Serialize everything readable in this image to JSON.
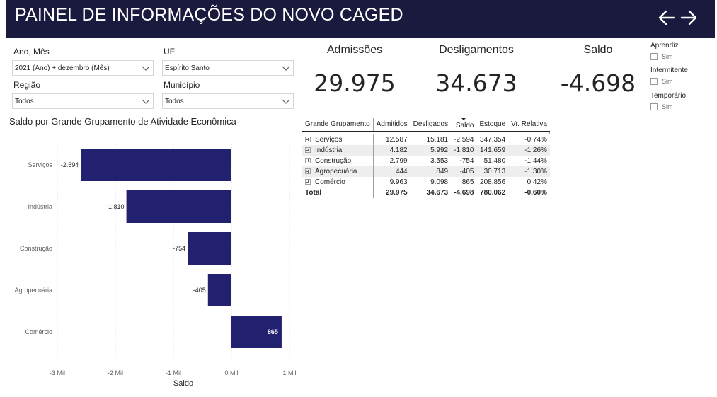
{
  "header": {
    "title": "PAINEL DE INFORMAÇÕES DO NOVO CAGED"
  },
  "filters": {
    "ano_mes": {
      "label": "Ano, Mês",
      "value": "2021 (Ano) + dezembro (Mês)"
    },
    "uf": {
      "label": "UF",
      "value": "Espírito Santo"
    },
    "regiao": {
      "label": "Região",
      "value": "Todos"
    },
    "municipio": {
      "label": "Município",
      "value": "Todos"
    }
  },
  "kpis": {
    "admissoes": {
      "label": "Admissões",
      "value": "29.975"
    },
    "desligamentos": {
      "label": "Desligamentos",
      "value": "34.673"
    },
    "saldo": {
      "label": "Saldo",
      "value": "-4.698"
    }
  },
  "checkboxes": {
    "aprendiz": {
      "title": "Aprendiz",
      "option": "Sim"
    },
    "intermitente": {
      "title": "Intermitente",
      "option": "Sim"
    },
    "temporario": {
      "title": "Temporário",
      "option": "Sim"
    }
  },
  "chart_data": {
    "type": "bar",
    "orientation": "horizontal",
    "title": "Saldo por Grande Grupamento de Atividade Econômica",
    "xlabel": "Saldo",
    "ylabel": "",
    "categories": [
      "Serviços",
      "Indústria",
      "Construção",
      "Agropecuária",
      "Comércio"
    ],
    "values": [
      -2594,
      -1810,
      -754,
      -405,
      865
    ],
    "labels": [
      "-2.594",
      "-1.810",
      "-754",
      "-405",
      "865"
    ],
    "xlim": [
      -3000,
      1000
    ],
    "ticks": [
      -3000,
      -2000,
      -1000,
      0,
      1000
    ],
    "tick_labels": [
      "-3 Mil",
      "-2 Mil",
      "-1 Mil",
      "0 Mil",
      "1 Mil"
    ],
    "bar_color": "#212170",
    "grid": true
  },
  "table": {
    "headers": [
      "Grande Grupamento",
      "Admitidos",
      "Desligados",
      "Saldo",
      "Estoque",
      "Vr. Relativa"
    ],
    "rows": [
      [
        "Serviços",
        "12.587",
        "15.181",
        "-2.594",
        "347.354",
        "-0,74%"
      ],
      [
        "Indústria",
        "4.182",
        "5.992",
        "-1.810",
        "141.659",
        "-1,26%"
      ],
      [
        "Construção",
        "2.799",
        "3.553",
        "-754",
        "51.480",
        "-1,44%"
      ],
      [
        "Agropecuária",
        "444",
        "849",
        "-405",
        "30.713",
        "-1,30%"
      ],
      [
        "Comércio",
        "9.963",
        "9.098",
        "865",
        "208.856",
        "0,42%"
      ]
    ],
    "total": [
      "Total",
      "29.975",
      "34.673",
      "-4.698",
      "780.062",
      "-0,60%"
    ]
  },
  "colors": {
    "header_bg": "#1a1a3e",
    "bar": "#212170",
    "text": "#252423"
  }
}
